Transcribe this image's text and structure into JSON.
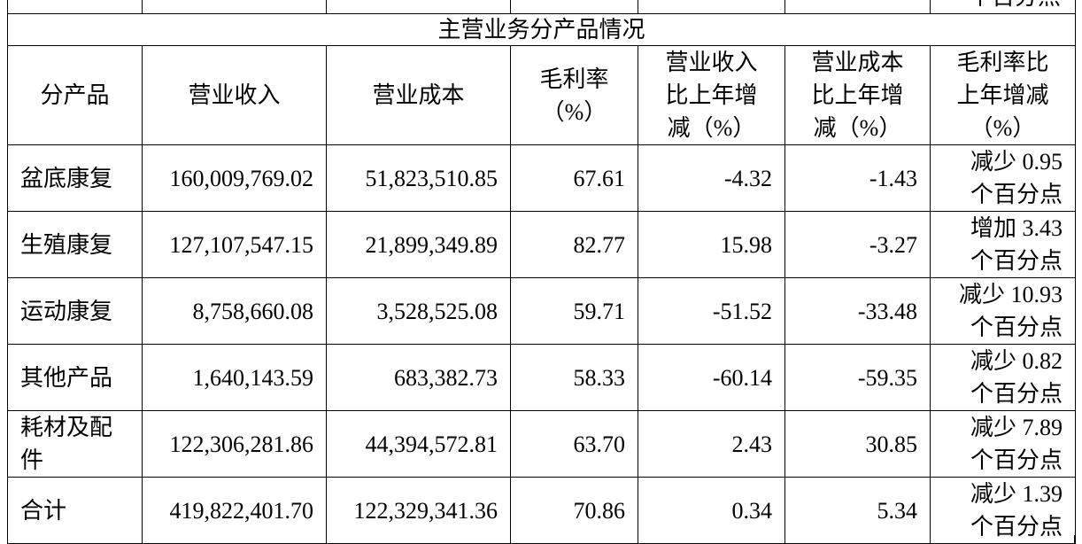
{
  "top_fragment": "个百分点",
  "table": {
    "title": "主营业务分产品情况",
    "header": [
      [
        "分产品"
      ],
      [
        "营业收入"
      ],
      [
        "营业成本"
      ],
      [
        "毛利率",
        "（%）"
      ],
      [
        "营业收入",
        "比上年增",
        "减（%）"
      ],
      [
        "营业成本",
        "比上年增",
        "减（%）"
      ],
      [
        "毛利率比",
        "上年增减",
        "（%）"
      ]
    ],
    "rows": [
      [
        [
          "盆底康复"
        ],
        "160,009,769.02",
        "51,823,510.85",
        "67.61",
        "-4.32",
        "-1.43",
        [
          "减少 0.95",
          "个百分点"
        ]
      ],
      [
        [
          "生殖康复"
        ],
        "127,107,547.15",
        "21,899,349.89",
        "82.77",
        "15.98",
        "-3.27",
        [
          "增加 3.43",
          "个百分点"
        ]
      ],
      [
        [
          "运动康复"
        ],
        "8,758,660.08",
        "3,528,525.08",
        "59.71",
        "-51.52",
        "-33.48",
        [
          "减少 10.93",
          "个百分点"
        ]
      ],
      [
        [
          "其他产品"
        ],
        "1,640,143.59",
        "683,382.73",
        "58.33",
        "-60.14",
        "-59.35",
        [
          "减少 0.82",
          "个百分点"
        ]
      ],
      [
        [
          "耗材及配",
          "件"
        ],
        "122,306,281.86",
        "44,394,572.81",
        "63.70",
        "2.43",
        "30.85",
        [
          "减少 7.89",
          "个百分点"
        ]
      ],
      [
        [
          "合计"
        ],
        "419,822,401.70",
        "122,329,341.36",
        "70.86",
        "0.34",
        "5.34",
        [
          "减少 1.39",
          "个百分点"
        ]
      ]
    ]
  }
}
